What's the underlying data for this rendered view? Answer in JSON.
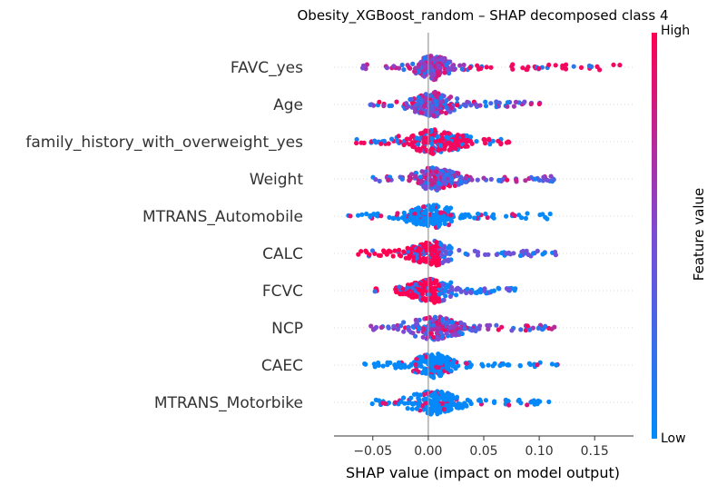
{
  "chart_data": {
    "type": "scatter",
    "subtype": "shap-beeswarm",
    "title": "Obesity_XGBoost_random – SHAP decomposed class 4",
    "xlabel": "SHAP value (impact on model output)",
    "ylabel": "",
    "xlim": [
      -0.085,
      0.185
    ],
    "x_ticks": [
      -0.05,
      0.0,
      0.05,
      0.1,
      0.15
    ],
    "x_tick_labels": [
      "−0.05",
      "0.00",
      "0.05",
      "0.10",
      "0.15"
    ],
    "grid": false,
    "colorbar": {
      "title": "Feature value",
      "high_label": "High",
      "low_label": "Low",
      "low_color": "#008bfb",
      "mid_color": "#7b4bd6",
      "high_color": "#ff0052"
    },
    "features": [
      {
        "name": "FAVC_yes",
        "min": -0.06,
        "max": 0.175,
        "core": [
          -0.02,
          0.025
        ],
        "pattern": "high_right"
      },
      {
        "name": "Age",
        "min": -0.058,
        "max": 0.105,
        "core": [
          -0.025,
          0.03
        ],
        "pattern": "mixed"
      },
      {
        "name": "family_history_with_overweight_yes",
        "min": -0.065,
        "max": 0.075,
        "core": [
          -0.03,
          0.05
        ],
        "pattern": "low_left"
      },
      {
        "name": "Weight",
        "min": -0.05,
        "max": 0.12,
        "core": [
          -0.02,
          0.04
        ],
        "pattern": "mixed"
      },
      {
        "name": "MTRANS_Automobile",
        "min": -0.075,
        "max": 0.112,
        "core": [
          -0.03,
          0.03
        ],
        "pattern": "low"
      },
      {
        "name": "CALC",
        "min": -0.065,
        "max": 0.12,
        "core": [
          -0.03,
          0.03
        ],
        "pattern": "high_left"
      },
      {
        "name": "FCVC",
        "min": -0.05,
        "max": 0.08,
        "core": [
          -0.035,
          0.03
        ],
        "pattern": "high_left"
      },
      {
        "name": "NCP",
        "min": -0.052,
        "max": 0.115,
        "core": [
          -0.025,
          0.045
        ],
        "pattern": "mixed"
      },
      {
        "name": "CAEC",
        "min": -0.058,
        "max": 0.118,
        "core": [
          -0.02,
          0.03
        ],
        "pattern": "low"
      },
      {
        "name": "MTRANS_Motorbike",
        "min": -0.052,
        "max": 0.113,
        "core": [
          -0.025,
          0.04
        ],
        "pattern": "low"
      }
    ]
  }
}
